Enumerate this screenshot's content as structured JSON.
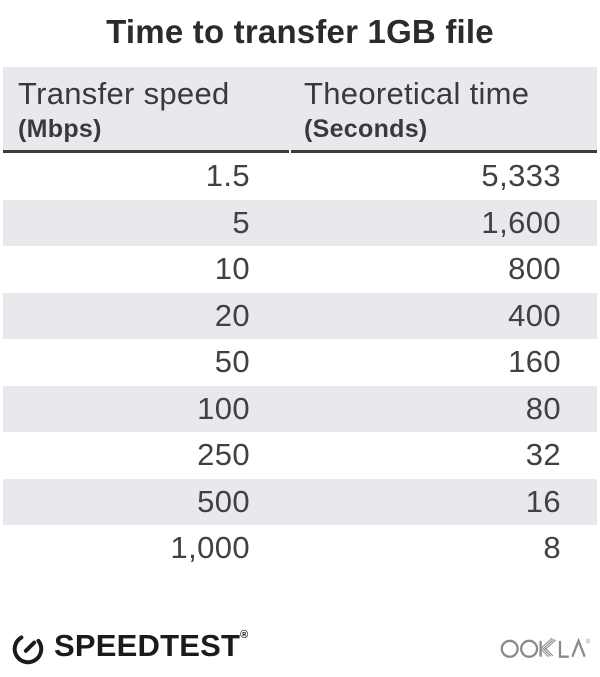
{
  "title": "Time to transfer 1GB file",
  "table": {
    "columns": [
      {
        "label": "Transfer speed",
        "unit": "(Mbps)"
      },
      {
        "label": "Theoretical time",
        "unit": "(Seconds)"
      }
    ],
    "rows": [
      {
        "speed": "1.5",
        "time": "5,333"
      },
      {
        "speed": "5",
        "time": "1,600"
      },
      {
        "speed": "10",
        "time": "800"
      },
      {
        "speed": "20",
        "time": "400"
      },
      {
        "speed": "50",
        "time": "160"
      },
      {
        "speed": "100",
        "time": "80"
      },
      {
        "speed": "250",
        "time": "32"
      },
      {
        "speed": "500",
        "time": "16"
      },
      {
        "speed": "1,000",
        "time": "8"
      }
    ]
  },
  "chart_data": {
    "type": "table",
    "title": "Time to transfer 1GB file",
    "columns": [
      "Transfer speed (Mbps)",
      "Theoretical time (Seconds)"
    ],
    "rows": [
      [
        1.5,
        5333
      ],
      [
        5,
        1600
      ],
      [
        10,
        800
      ],
      [
        20,
        400
      ],
      [
        50,
        160
      ],
      [
        100,
        80
      ],
      [
        250,
        32
      ],
      [
        500,
        16
      ],
      [
        1000,
        8
      ]
    ]
  },
  "footer": {
    "speedtest_label": "SPEEDTEST",
    "speedtest_trademark": "®",
    "ookla_label": "OOKLA",
    "ookla_trademark": "®"
  },
  "icons": {
    "speedtest_icon": "gauge-icon",
    "ookla_logo": "ookla-wordmark"
  },
  "colors": {
    "header_bg": "#e9e8ec",
    "row_alt": "#e9e8ec",
    "divider": "#3b3b3b",
    "title": "#2b2a2c",
    "header_text": "#3a393b",
    "value_text": "#424142",
    "speedtest_black": "#1b1b1b",
    "ookla_gray": "#8b8b8b"
  }
}
